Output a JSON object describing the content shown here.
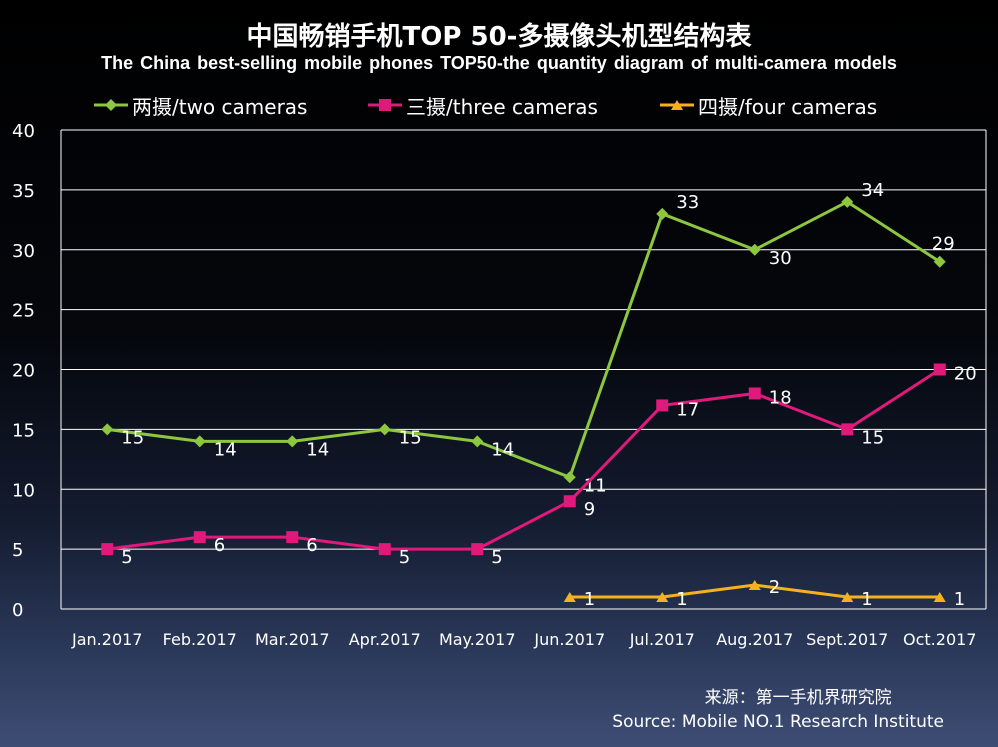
{
  "header": {
    "title": "中国畅销手机TOP 50-多摄像头机型结构表",
    "subtitle": "The China best-selling mobile phones TOP50-the quantity diagram of multi-camera models"
  },
  "legend": {
    "items": [
      {
        "label": "两摄/two cameras",
        "color": "#8dc63f",
        "marker": "diamond"
      },
      {
        "label": "三摄/three cameras",
        "color": "#e0197a",
        "marker": "square"
      },
      {
        "label": "四摄/four cameras",
        "color": "#f5b21e",
        "marker": "triangle"
      }
    ]
  },
  "chart_data": {
    "type": "line",
    "title": "中国畅销手机TOP 50-多摄像头机型结构表",
    "categories": [
      "Jan.2017",
      "Feb.2017",
      "Mar.2017",
      "Apr.2017",
      "May.2017",
      "Jun.2017",
      "Jul.2017",
      "Aug.2017",
      "Sept.2017",
      "Oct.2017"
    ],
    "ylim": [
      0,
      40
    ],
    "yticks": [
      0,
      5,
      10,
      15,
      20,
      25,
      30,
      35,
      40
    ],
    "grid": true,
    "legend_position": "top",
    "series": [
      {
        "name": "两摄/two cameras",
        "color": "#8dc63f",
        "marker": "diamond",
        "values": [
          15,
          14,
          14,
          15,
          14,
          11,
          33,
          30,
          34,
          29
        ]
      },
      {
        "name": "三摄/three cameras",
        "color": "#e0197a",
        "marker": "square",
        "values": [
          5,
          6,
          6,
          5,
          5,
          9,
          17,
          18,
          15,
          20
        ]
      },
      {
        "name": "四摄/four cameras",
        "color": "#f5b21e",
        "marker": "triangle",
        "values": [
          null,
          null,
          null,
          null,
          null,
          1,
          1,
          2,
          1,
          1
        ]
      }
    ]
  },
  "footer": {
    "source_zh": "来源：第一手机界研究院",
    "source_en": "Source: Mobile NO.1 Research Institute"
  }
}
